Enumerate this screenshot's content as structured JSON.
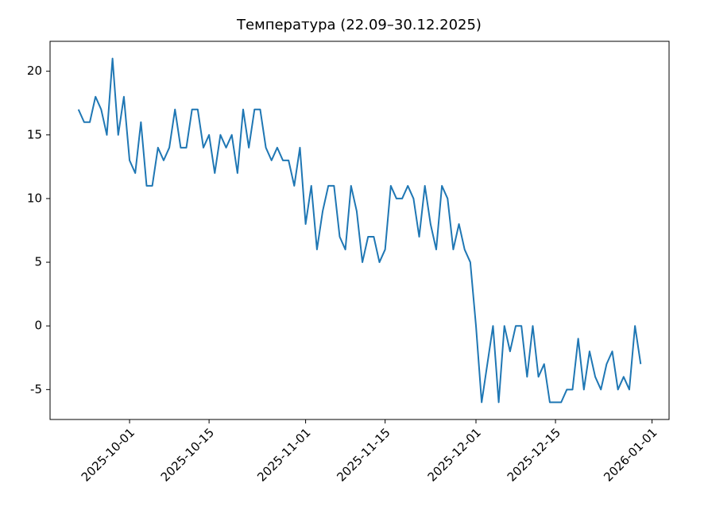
{
  "chart_data": {
    "type": "line",
    "title": "Температура (22.09–30.12.2025)",
    "x": [
      "2025-09-22",
      "2025-09-23",
      "2025-09-24",
      "2025-09-25",
      "2025-09-26",
      "2025-09-27",
      "2025-09-28",
      "2025-09-29",
      "2025-09-30",
      "2025-10-01",
      "2025-10-02",
      "2025-10-03",
      "2025-10-04",
      "2025-10-05",
      "2025-10-06",
      "2025-10-07",
      "2025-10-08",
      "2025-10-09",
      "2025-10-10",
      "2025-10-11",
      "2025-10-12",
      "2025-10-13",
      "2025-10-14",
      "2025-10-15",
      "2025-10-16",
      "2025-10-17",
      "2025-10-18",
      "2025-10-19",
      "2025-10-20",
      "2025-10-21",
      "2025-10-22",
      "2025-10-23",
      "2025-10-24",
      "2025-10-25",
      "2025-10-26",
      "2025-10-27",
      "2025-10-28",
      "2025-10-29",
      "2025-10-30",
      "2025-10-31",
      "2025-11-01",
      "2025-11-02",
      "2025-11-03",
      "2025-11-04",
      "2025-11-05",
      "2025-11-06",
      "2025-11-07",
      "2025-11-08",
      "2025-11-09",
      "2025-11-10",
      "2025-11-11",
      "2025-11-12",
      "2025-11-13",
      "2025-11-14",
      "2025-11-15",
      "2025-11-16",
      "2025-11-17",
      "2025-11-18",
      "2025-11-19",
      "2025-11-20",
      "2025-11-21",
      "2025-11-22",
      "2025-11-23",
      "2025-11-24",
      "2025-11-25",
      "2025-11-26",
      "2025-11-27",
      "2025-11-28",
      "2025-11-29",
      "2025-11-30",
      "2025-12-01",
      "2025-12-02",
      "2025-12-03",
      "2025-12-04",
      "2025-12-05",
      "2025-12-06",
      "2025-12-07",
      "2025-12-08",
      "2025-12-09",
      "2025-12-10",
      "2025-12-11",
      "2025-12-12",
      "2025-12-13",
      "2025-12-14",
      "2025-12-15",
      "2025-12-16",
      "2025-12-17",
      "2025-12-18",
      "2025-12-19",
      "2025-12-20",
      "2025-12-21",
      "2025-12-22",
      "2025-12-23",
      "2025-12-24",
      "2025-12-25",
      "2025-12-26",
      "2025-12-27",
      "2025-12-28",
      "2025-12-29",
      "2025-12-30"
    ],
    "series": [
      {
        "color": "#1f77b4",
        "values": [
          17,
          16,
          16,
          18,
          17,
          15,
          21,
          15,
          18,
          13,
          12,
          16,
          11,
          11,
          14,
          13,
          14,
          17,
          14,
          14,
          17,
          17,
          14,
          15,
          12,
          15,
          14,
          15,
          12,
          17,
          14,
          17,
          17,
          14,
          13,
          14,
          13,
          13,
          11,
          14,
          8,
          11,
          6,
          9,
          11,
          11,
          7,
          6,
          11,
          9,
          5,
          7,
          7,
          5,
          6,
          11,
          10,
          10,
          11,
          10,
          7,
          11,
          8,
          6,
          11,
          10,
          6,
          8,
          6,
          5,
          0,
          -6,
          -3,
          0,
          -6,
          0,
          -2,
          0,
          0,
          -4,
          0,
          -4,
          -3,
          -6,
          -6,
          -6,
          -5,
          -5,
          -1,
          -5,
          -2,
          -4,
          -5,
          -3,
          -2,
          -5,
          -4,
          -5,
          0,
          -3
        ]
      }
    ],
    "xlim": [
      "2025-09-17",
      "2026-01-04"
    ],
    "xticks": [
      "2025-10-01",
      "2025-10-15",
      "2025-11-01",
      "2025-11-15",
      "2025-12-01",
      "2025-12-15",
      "2026-01-01"
    ],
    "ylim": [
      -7.35,
      22.35
    ],
    "yticks": [
      -5,
      0,
      5,
      10,
      15,
      20
    ],
    "grid": false
  }
}
